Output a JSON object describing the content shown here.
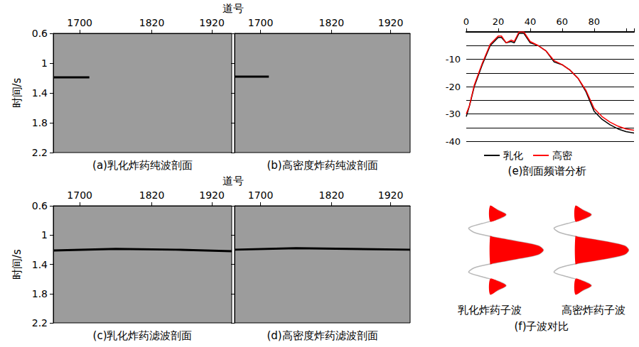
{
  "chart_data": [
    {
      "type": "section",
      "title": "(a)乳化炸药纯波剖面",
      "xlabel": "道号",
      "ylabel": "时间/s",
      "xlim": [
        1656,
        1953
      ],
      "xticks": [
        1700,
        1820,
        1920
      ],
      "ylim": [
        0.6,
        2.2
      ],
      "yticks": [
        0.6,
        1,
        1.4,
        1.8,
        2.2
      ],
      "events": [
        {
          "x": [
            1656,
            1716
          ],
          "values": [
            1.19,
            1.19
          ]
        }
      ]
    },
    {
      "type": "section",
      "title": "(b)高密度炸药纯波剖面",
      "tick_labels": "x",
      "xlim": [
        1656,
        1953
      ],
      "xticks": [
        1700,
        1820,
        1920
      ],
      "ylim": [
        0.6,
        2.2
      ],
      "yticks": [
        0.6,
        1,
        1.4,
        1.8,
        2.2
      ],
      "events": [
        {
          "x": [
            1656,
            1714
          ],
          "values": [
            1.18,
            1.18
          ]
        }
      ]
    },
    {
      "type": "section",
      "title": "(c)乳化炸药滤波剖面",
      "xlabel": "道号",
      "ylabel": "时间/s",
      "xlim": [
        1656,
        1953
      ],
      "xticks": [
        1700,
        1820,
        1920
      ],
      "ylim": [
        0.6,
        2.2
      ],
      "yticks": [
        0.6,
        1,
        1.4,
        1.8,
        2.2
      ],
      "events": [
        {
          "x": [
            1656,
            1760,
            1860,
            1953
          ],
          "values": [
            1.21,
            1.19,
            1.2,
            1.22
          ]
        }
      ]
    },
    {
      "type": "section",
      "title": "(d)高密度炸药滤波剖面",
      "tick_labels": "x",
      "xlim": [
        1656,
        1953
      ],
      "xticks": [
        1700,
        1820,
        1920
      ],
      "ylim": [
        0.6,
        2.2
      ],
      "yticks": [
        0.6,
        1,
        1.4,
        1.8,
        2.2
      ],
      "events": [
        {
          "x": [
            1656,
            1760,
            1953
          ],
          "values": [
            1.2,
            1.18,
            1.2
          ]
        }
      ]
    },
    {
      "type": "line",
      "title": "(e)剖面频谱分析",
      "x": [
        0,
        2,
        5,
        10,
        15,
        20,
        22,
        25,
        28,
        30,
        33,
        36,
        40,
        45,
        50,
        55,
        60,
        65,
        70,
        75,
        80,
        85,
        90,
        95,
        100,
        105
      ],
      "series": [
        {
          "name": "乳化",
          "color": "#000000",
          "values": [
            -31,
            -27,
            -20,
            -12,
            -5,
            -2,
            -2,
            -4,
            -3.5,
            -4,
            -0.5,
            -0.5,
            -4,
            -5,
            -7,
            -11,
            -12,
            -14,
            -17,
            -22,
            -29,
            -32,
            -34,
            -35.5,
            -36.5,
            -37
          ]
        },
        {
          "name": "高密",
          "color": "#ff0000",
          "values": [
            -30,
            -27,
            -19.5,
            -11.5,
            -4.5,
            -1.5,
            -1.5,
            -4,
            -3,
            -3.5,
            0,
            0,
            -3.5,
            -5,
            -7,
            -10.5,
            -12,
            -14,
            -17,
            -21.5,
            -28,
            -31,
            -33,
            -34.5,
            -35.5,
            -36
          ]
        }
      ],
      "xlim": [
        0,
        105
      ],
      "xticks": [
        0,
        20,
        40,
        60,
        80
      ],
      "ylim": [
        -40,
        0
      ],
      "yticks": [
        -40,
        -30,
        -20,
        -10
      ],
      "grid": true,
      "legend": "bottom"
    },
    {
      "type": "wavelet",
      "title": "(f)子波对比",
      "x": [
        -1,
        -0.9,
        -0.8,
        -0.7,
        -0.6,
        -0.5,
        -0.4,
        -0.3,
        -0.2,
        -0.1,
        0,
        0.1,
        0.2,
        0.3,
        0.4,
        0.5,
        0.6,
        0.7,
        0.8,
        0.9,
        1
      ],
      "series": [
        {
          "name": "乳化炸药子波",
          "color": "#ff0000",
          "values": [
            0,
            0.15,
            0.3,
            0.15,
            -0.15,
            -0.4,
            -0.3,
            0.05,
            0.5,
            0.9,
            1.0,
            0.9,
            0.5,
            0.05,
            -0.3,
            -0.4,
            -0.15,
            0.15,
            0.3,
            0.15,
            0
          ]
        },
        {
          "name": "高密炸药子波",
          "color": "#ff0000",
          "values": [
            0,
            0.15,
            0.3,
            0.15,
            -0.15,
            -0.4,
            -0.3,
            0.05,
            0.55,
            0.92,
            1.0,
            0.92,
            0.55,
            0.05,
            -0.3,
            -0.4,
            -0.15,
            0.15,
            0.3,
            0.15,
            0
          ]
        }
      ],
      "xlim": [
        -0.7,
        1.1
      ],
      "ylim": [
        -1,
        1
      ],
      "tick_labels": false
    }
  ]
}
